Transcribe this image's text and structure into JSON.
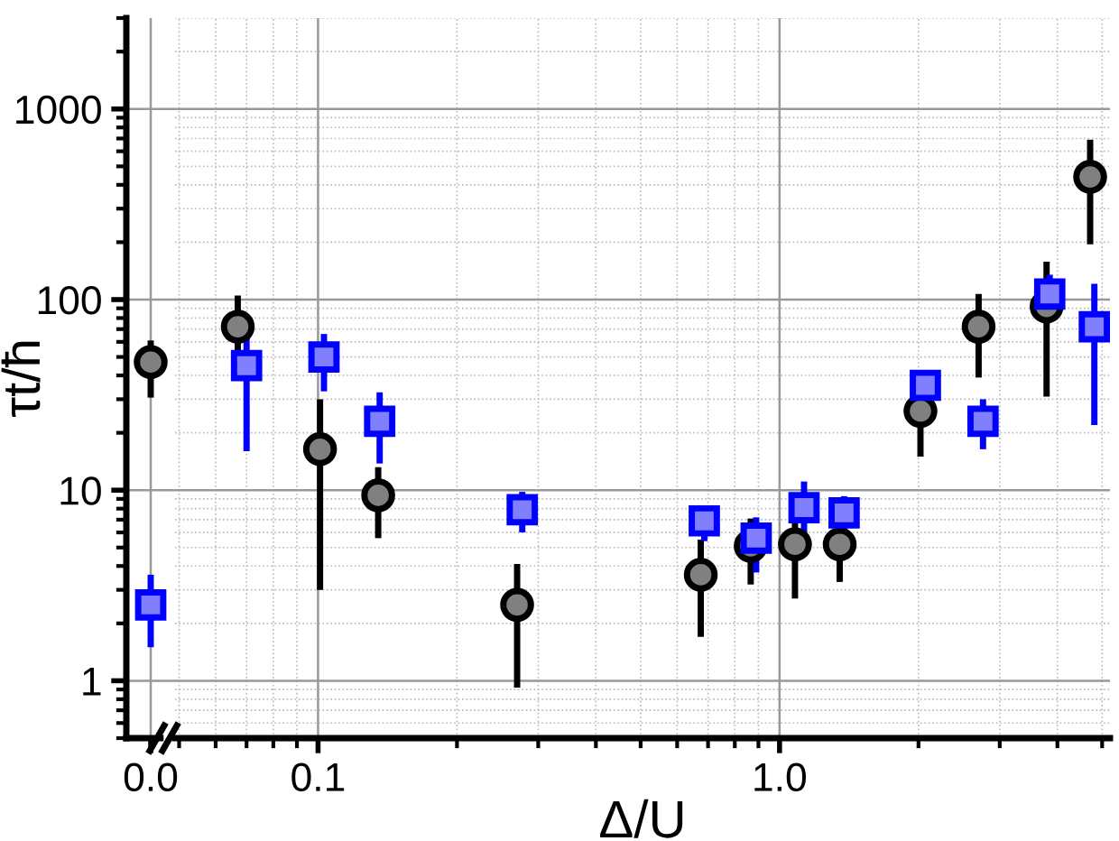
{
  "chart_data": [
    {
      "type": "scatter",
      "ylabel": "τt/ħ",
      "categories": [
        "0.0"
      ],
      "log": "y",
      "ylim": [
        0.5,
        3000
      ],
      "yticks": [
        1,
        10,
        100,
        1000
      ],
      "grid": true,
      "tick_labels": true,
      "series": [
        {
          "color": "#000000",
          "marker": "circle",
          "values": [
            47
          ],
          "errors": [
            [
              30.6,
              61
            ]
          ]
        },
        {
          "color": "#0000ff",
          "marker": "square",
          "values": [
            2.5
          ],
          "errors": [
            [
              1.5,
              3.6
            ]
          ]
        }
      ]
    },
    {
      "type": "scatter",
      "xlabel": "Δ/U",
      "log": "xy",
      "xlim": [
        0.049,
        5.2
      ],
      "xticks": [
        0.1,
        {
          "value": 1,
          "label": "1.0"
        }
      ],
      "ylim": [
        0.5,
        3000
      ],
      "yticks": [
        1,
        10,
        100,
        1000
      ],
      "grid": true,
      "tick_labels": "x",
      "series": [
        {
          "color": "#000000",
          "marker": "circle",
          "x": [
            0.067,
            0.101,
            0.135,
            0.27,
            0.675,
            0.866,
            1.08,
            1.35,
            2.02,
            2.7,
            3.79,
            4.71
          ],
          "values": [
            72,
            16.4,
            9.4,
            2.5,
            3.6,
            5.1,
            5.2,
            5.2,
            26,
            72,
            92,
            440
          ],
          "errors": [
            [
              51,
              105
            ],
            [
              3.0,
              30
            ],
            [
              5.6,
              13.2
            ],
            [
              0.92,
              4.1
            ],
            [
              1.7,
              5.5
            ],
            [
              3.2,
              7.1
            ],
            [
              2.7,
              7
            ],
            [
              3.3,
              7
            ],
            [
              15,
              32
            ],
            [
              39,
              107
            ],
            [
              31,
              158
            ],
            [
              195,
              690
            ]
          ]
        },
        {
          "color": "#0000ff",
          "marker": "square",
          "x": [
            0.07,
            0.103,
            0.136,
            0.277,
            0.687,
            0.89,
            1.13,
            1.38,
            2.07,
            2.76,
            3.85,
            4.81
          ],
          "values": [
            45,
            50,
            23,
            7.9,
            6.9,
            5.6,
            8.1,
            7.6,
            35.5,
            23,
            107,
            72
          ],
          "errors": [
            [
              16,
              75
            ],
            [
              33,
              66
            ],
            [
              13.8,
              32.6
            ],
            [
              6.0,
              9.8
            ],
            [
              5.4,
              8.2
            ],
            [
              3.7,
              7.2
            ],
            [
              5.1,
              11.1
            ],
            [
              5.7,
              9.3
            ],
            null,
            [
              16.4,
              30
            ],
            [
              90,
              135
            ],
            [
              22,
              121
            ]
          ]
        }
      ]
    }
  ]
}
